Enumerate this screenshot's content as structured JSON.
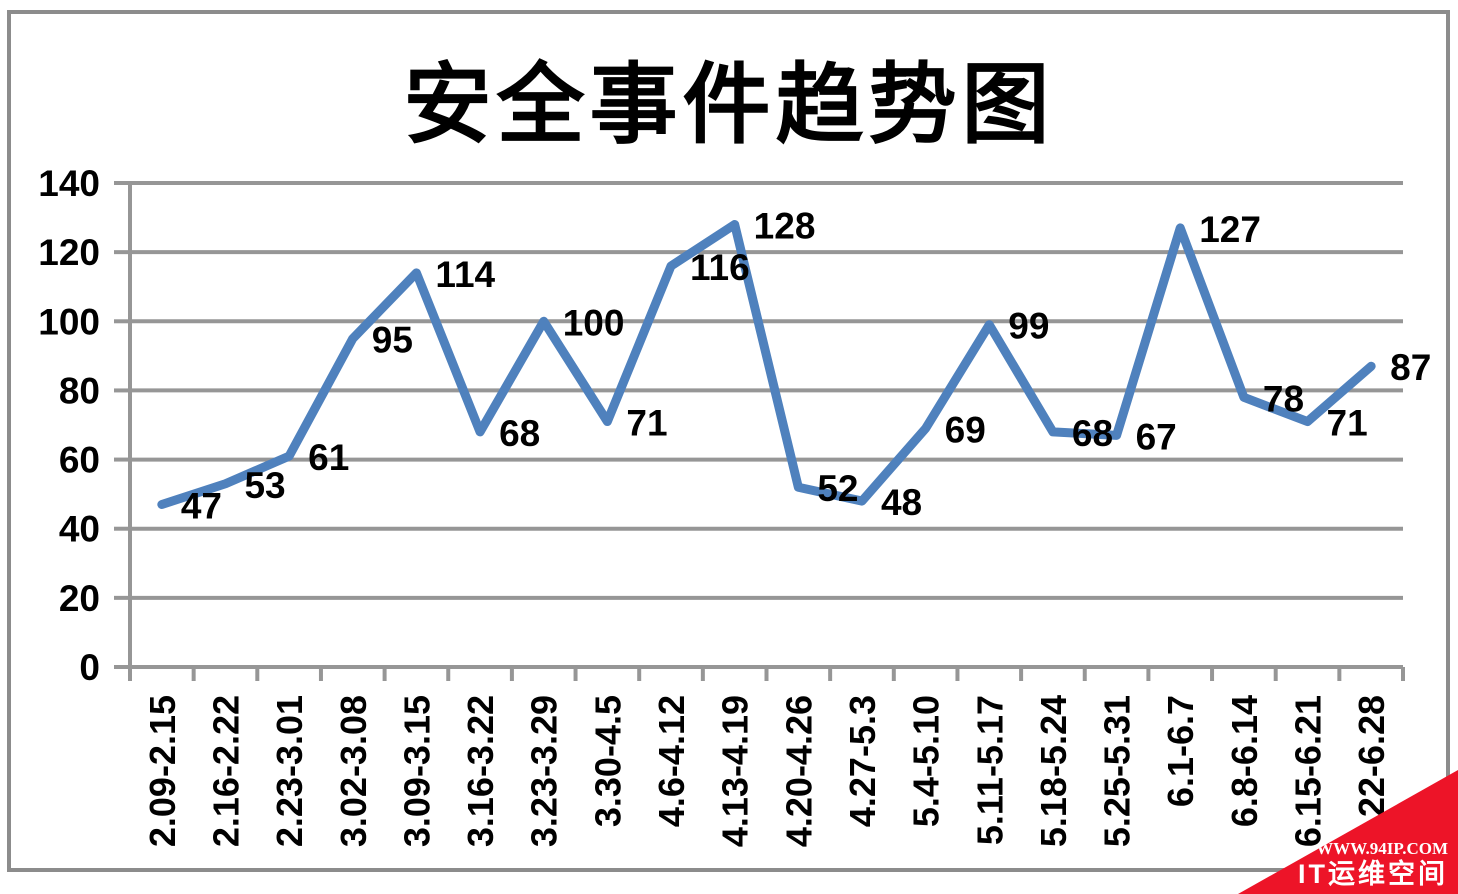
{
  "title": "安全事件趋势图",
  "chart_data": {
    "type": "line",
    "title": "安全事件趋势图",
    "categories": [
      "2.09-2.15",
      "2.16-2.22",
      "2.23-3.01",
      "3.02-3.08",
      "3.09-3.15",
      "3.16-3.22",
      "3.23-3.29",
      "3.30-4.5",
      "4.6-4.12",
      "4.13-4.19",
      "4.20-4.26",
      "4.27-5.3",
      "5.4-5.10",
      "5.11-5.17",
      "5.18-5.24",
      "5.25-5.31",
      "6.1-6.7",
      "6.8-6.14",
      "6.15-6.21",
      "22-6.28"
    ],
    "values": [
      47,
      53,
      61,
      95,
      114,
      68,
      100,
      71,
      116,
      128,
      52,
      48,
      69,
      99,
      68,
      67,
      127,
      78,
      71,
      87
    ],
    "xlabel": "",
    "ylabel": "",
    "ylim": [
      0,
      140
    ],
    "ytick_step": 20,
    "yticks": [
      0,
      20,
      40,
      60,
      80,
      100,
      120,
      140
    ],
    "grid": true,
    "legend": "none",
    "data_labels": true,
    "series_color": "#4F81BD",
    "grid_color": "#969696",
    "axis_color": "#8c8c8c",
    "label_color": "#000000"
  },
  "watermark": {
    "line1": "WWW.94IP.COM",
    "line2": "IT运维空间",
    "background": "#ED1428",
    "text_color": "#FFFFFF"
  }
}
